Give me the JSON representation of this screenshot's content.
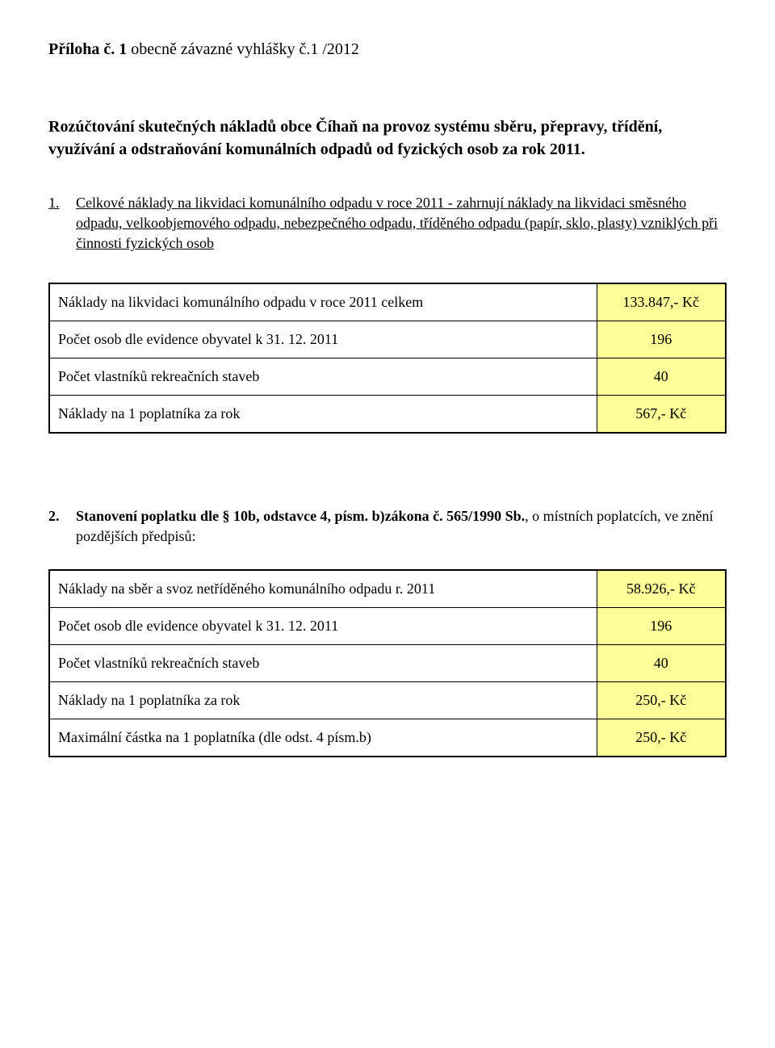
{
  "doc": {
    "title_bold": "Příloha č. 1",
    "title_rest": " obecně závazné vyhlášky č.1 /2012",
    "subtitle": "Rozúčtování skutečných nákladů obce Číhaň na provoz systému sběru, přepravy, třídění, využívání a odstraňování komunálních odpadů od fyzických osob za rok 2011.",
    "item1_num": "1.",
    "item1_text": "Celkové náklady na likvidaci komunálního odpadu v roce 2011 - zahrnují náklady na likvidaci směsného odpadu, velkoobjemového odpadu, nebezpečného odpadu, tříděného odpadu (papír, sklo, plasty) vzniklých při činnosti fyzických osob",
    "item2_num": "2.",
    "item2_bold_a": "Stanovení poplatku dle § 10b, odstavce 4, písm. b)zákona č. 565/1990 Sb.",
    "item2_rest_a": ", o místních poplatcích, ve znění pozdějších předpisů:"
  },
  "table1": {
    "rows": [
      {
        "label": "Náklady na likvidaci komunálního odpadu v roce 2011 celkem",
        "value": "133.847,- Kč"
      },
      {
        "label": "Počet osob dle evidence obyvatel k 31. 12. 2011",
        "value": "196"
      },
      {
        "label": "Počet vlastníků rekreačních staveb",
        "value": "40"
      },
      {
        "label": "Náklady na 1 poplatníka za rok",
        "value": "567,- Kč"
      }
    ]
  },
  "table2": {
    "rows": [
      {
        "label": "Náklady na sběr a svoz netříděného komunálního odpadu r. 2011",
        "value": "58.926,- Kč"
      },
      {
        "label": "Počet osob dle evidence obyvatel k 31. 12. 2011",
        "value": "196"
      },
      {
        "label": "Počet vlastníků rekreačních staveb",
        "value": "40"
      },
      {
        "label": "Náklady na 1 poplatníka za rok",
        "value": "250,- Kč"
      },
      {
        "label": "Maximální částka na 1 poplatníka (dle odst. 4 písm.b)",
        "value": "250,- Kč"
      }
    ]
  },
  "colors": {
    "highlight": "#ffff99",
    "text": "#000000",
    "background": "#ffffff"
  }
}
